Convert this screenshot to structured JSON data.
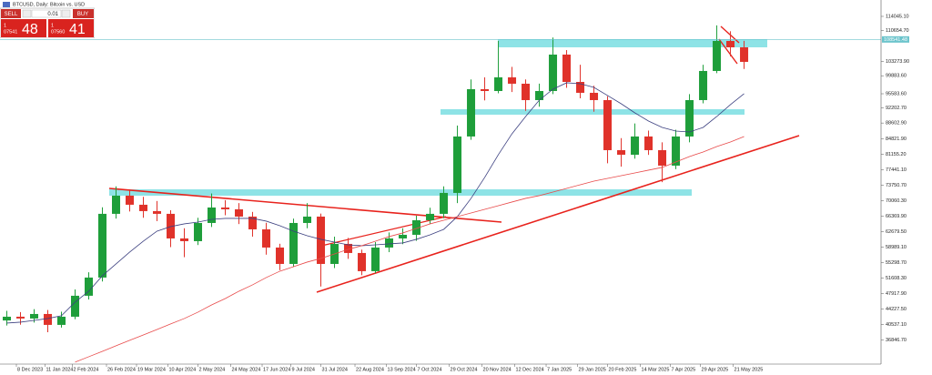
{
  "chart_data": {
    "type": "candlestick",
    "title": "BTCUSD, Daily: Bitcoin vs. USD",
    "categories": [
      null,
      null,
      null,
      null,
      null,
      null,
      null,
      null,
      null,
      null,
      null,
      null,
      null,
      null,
      null,
      null,
      null,
      null,
      null,
      null,
      null,
      null,
      null,
      null,
      null,
      null,
      null,
      null,
      null,
      null,
      null,
      null,
      null,
      null,
      null,
      null,
      null,
      null,
      null,
      null,
      null,
      null,
      null,
      null,
      null,
      null,
      null,
      null,
      null,
      null,
      null,
      null,
      null,
      null,
      null
    ],
    "open": [
      41500,
      42400,
      41970,
      43050,
      40450,
      42400,
      47400,
      51740,
      66940,
      71280,
      69110,
      67590,
      66940,
      61070,
      60420,
      64760,
      68450,
      68020,
      66280,
      63240,
      58900,
      54990,
      64760,
      66280,
      54990,
      59770,
      57600,
      53260,
      58900,
      61070,
      61940,
      65410,
      66940,
      71930,
      85390,
      96680,
      96240,
      99500,
      97980,
      94070,
      96240,
      104930,
      98410,
      95810,
      94070,
      82130,
      81040,
      85390,
      82130,
      78440,
      85390,
      94070,
      101020,
      108180,
      106660
    ],
    "high": [
      43800,
      43500,
      44200,
      44000,
      43600,
      48900,
      53000,
      68500,
      73500,
      72800,
      71000,
      70000,
      67800,
      63500,
      66000,
      71800,
      70200,
      69500,
      67400,
      64800,
      59800,
      65800,
      69500,
      67000,
      61500,
      61200,
      58400,
      60200,
      62500,
      63500,
      66500,
      68400,
      73500,
      88000,
      99000,
      99500,
      108200,
      102000,
      99000,
      98000,
      109000,
      106000,
      102500,
      97500,
      95000,
      85000,
      88500,
      86800,
      84000,
      87000,
      95500,
      102500,
      111900,
      110500,
      108200
    ],
    "low": [
      40300,
      40500,
      41000,
      38700,
      39800,
      41800,
      46500,
      50800,
      65800,
      67500,
      66000,
      65200,
      59000,
      56600,
      59500,
      63800,
      66600,
      64500,
      61500,
      57200,
      53500,
      54300,
      63500,
      49600,
      54000,
      56200,
      52300,
      52800,
      57800,
      59700,
      60500,
      64500,
      65900,
      69500,
      84600,
      94000,
      95700,
      96000,
      91500,
      92500,
      95500,
      97000,
      94500,
      91300,
      79000,
      78200,
      80100,
      81000,
      74500,
      77600,
      84000,
      93300,
      100500,
      104500,
      101500
    ],
    "close": [
      42400,
      41970,
      43050,
      40450,
      42400,
      47400,
      51740,
      66940,
      71280,
      69110,
      67590,
      66940,
      61070,
      60420,
      64760,
      68450,
      68020,
      66280,
      63240,
      58900,
      54990,
      64760,
      66280,
      54990,
      59770,
      57600,
      53260,
      58900,
      61070,
      61940,
      65410,
      66940,
      71930,
      85390,
      96680,
      96240,
      99500,
      97980,
      94070,
      96240,
      104930,
      98410,
      95810,
      94070,
      82130,
      81040,
      85390,
      82130,
      78440,
      85390,
      94070,
      101020,
      108180,
      106660,
      103190
    ],
    "up_color": "#1e9e3a",
    "down_color": "#e0322a",
    "series": [
      {
        "color": "#3c4080",
        "values": [
          40880,
          41100,
          41530,
          41970,
          42620,
          45880,
          48480,
          52170,
          54990,
          57820,
          60420,
          62810,
          63900,
          64550,
          64980,
          65630,
          65850,
          65850,
          65850,
          65200,
          64110,
          62810,
          61720,
          60860,
          60200,
          59550,
          59340,
          59550,
          59770,
          59990,
          60860,
          61940,
          63240,
          66280,
          70630,
          75620,
          81050,
          86040,
          90160,
          94070,
          96680,
          98200,
          97980,
          97110,
          95160,
          93200,
          91030,
          89080,
          87560,
          86690,
          86470,
          87560,
          90160,
          92990,
          95590
        ]
      },
      {
        "color": "#e84a4a",
        "values": [
          null,
          null,
          null,
          null,
          null,
          31550,
          32850,
          34150,
          35460,
          36760,
          38060,
          39360,
          40670,
          41970,
          43490,
          45220,
          46740,
          48480,
          50000,
          51740,
          53260,
          54340,
          55430,
          56300,
          57380,
          58470,
          59340,
          60420,
          61510,
          62380,
          63460,
          64550,
          65410,
          66280,
          67150,
          68020,
          68890,
          69760,
          70630,
          71280,
          72140,
          73010,
          73880,
          74750,
          75400,
          76050,
          76700,
          77360,
          78010,
          79310,
          80610,
          81700,
          83000,
          84090,
          85390
        ]
      }
    ],
    "last_price": {
      "value": 108541.48,
      "label": "108541.48",
      "color": "#6cc4cc"
    },
    "xlim": [
      -0.5,
      64.03
    ],
    "ylim": [
      31100,
      117950
    ],
    "xticks": [
      {
        "value": 0.7,
        "label": "8 Dec 2023"
      },
      {
        "value": 2.8,
        "label": "11 Jan 2024"
      },
      {
        "value": 4.8,
        "label": "2 Feb 2024"
      },
      {
        "value": 7.3,
        "label": "26 Feb 2024"
      },
      {
        "value": 9.5,
        "label": "19 Mar 2024"
      },
      {
        "value": 11.8,
        "label": "10 Apr 2024"
      },
      {
        "value": 14.0,
        "label": "2 May 2024"
      },
      {
        "value": 16.4,
        "label": "24 May 2024"
      },
      {
        "value": 18.7,
        "label": "17 Jun 2024"
      },
      {
        "value": 20.8,
        "label": "9 Jul 2024"
      },
      {
        "value": 23.0,
        "label": "31 Jul 2024"
      },
      {
        "value": 25.5,
        "label": "22 Aug 2024"
      },
      {
        "value": 27.8,
        "label": "13 Sep 2024"
      },
      {
        "value": 30.0,
        "label": "7 Oct 2024"
      },
      {
        "value": 32.4,
        "label": "29 Oct 2024"
      },
      {
        "value": 34.8,
        "label": "20 Nov 2024"
      },
      {
        "value": 37.2,
        "label": "12 Dec 2024"
      },
      {
        "value": 39.5,
        "label": "7 Jan 2025"
      },
      {
        "value": 41.8,
        "label": "29 Jan 2025"
      },
      {
        "value": 44.0,
        "label": "20 Feb 2025"
      },
      {
        "value": 46.4,
        "label": "14 Mar 2025"
      },
      {
        "value": 48.6,
        "label": "7 Apr 2025"
      },
      {
        "value": 50.8,
        "label": "29 Apr 2025"
      },
      {
        "value": 53.2,
        "label": "21 May 2025"
      }
    ],
    "yticks": [
      {
        "value": 114045.1,
        "label": "114045.10"
      },
      {
        "value": 110654.7,
        "label": "110654.70"
      },
      {
        "value": 103273.9,
        "label": "103273.90"
      },
      {
        "value": 99883.6,
        "label": "99883.60"
      },
      {
        "value": 95583.6,
        "label": "95583.60"
      },
      {
        "value": 92202.7,
        "label": "92202.70"
      },
      {
        "value": 88602.9,
        "label": "88602.90"
      },
      {
        "value": 84821.9,
        "label": "84821.90"
      },
      {
        "value": 81155.2,
        "label": "81155.20"
      },
      {
        "value": 77441.1,
        "label": "77441.10"
      },
      {
        "value": 73750.7,
        "label": "73750.70"
      },
      {
        "value": 70060.3,
        "label": "70060.30"
      },
      {
        "value": 66369.9,
        "label": "66369.90"
      },
      {
        "value": 62679.5,
        "label": "62679.50"
      },
      {
        "value": 58989.1,
        "label": "58989.10"
      },
      {
        "value": 55298.7,
        "label": "55298.70"
      },
      {
        "value": 51608.3,
        "label": "51608.30"
      },
      {
        "value": 47917.9,
        "label": "47917.90"
      },
      {
        "value": 44227.5,
        "label": "44227.50"
      },
      {
        "value": 40537.1,
        "label": "40537.10"
      },
      {
        "value": 36846.7,
        "label": "36846.70"
      }
    ],
    "grid": false
  },
  "trade_panel": {
    "sell": "SELL",
    "buy": "BUY",
    "lot": "0.01",
    "sell_price": [
      "1",
      "07541",
      "48"
    ],
    "buy_price": [
      "1",
      "07560",
      "41"
    ]
  }
}
